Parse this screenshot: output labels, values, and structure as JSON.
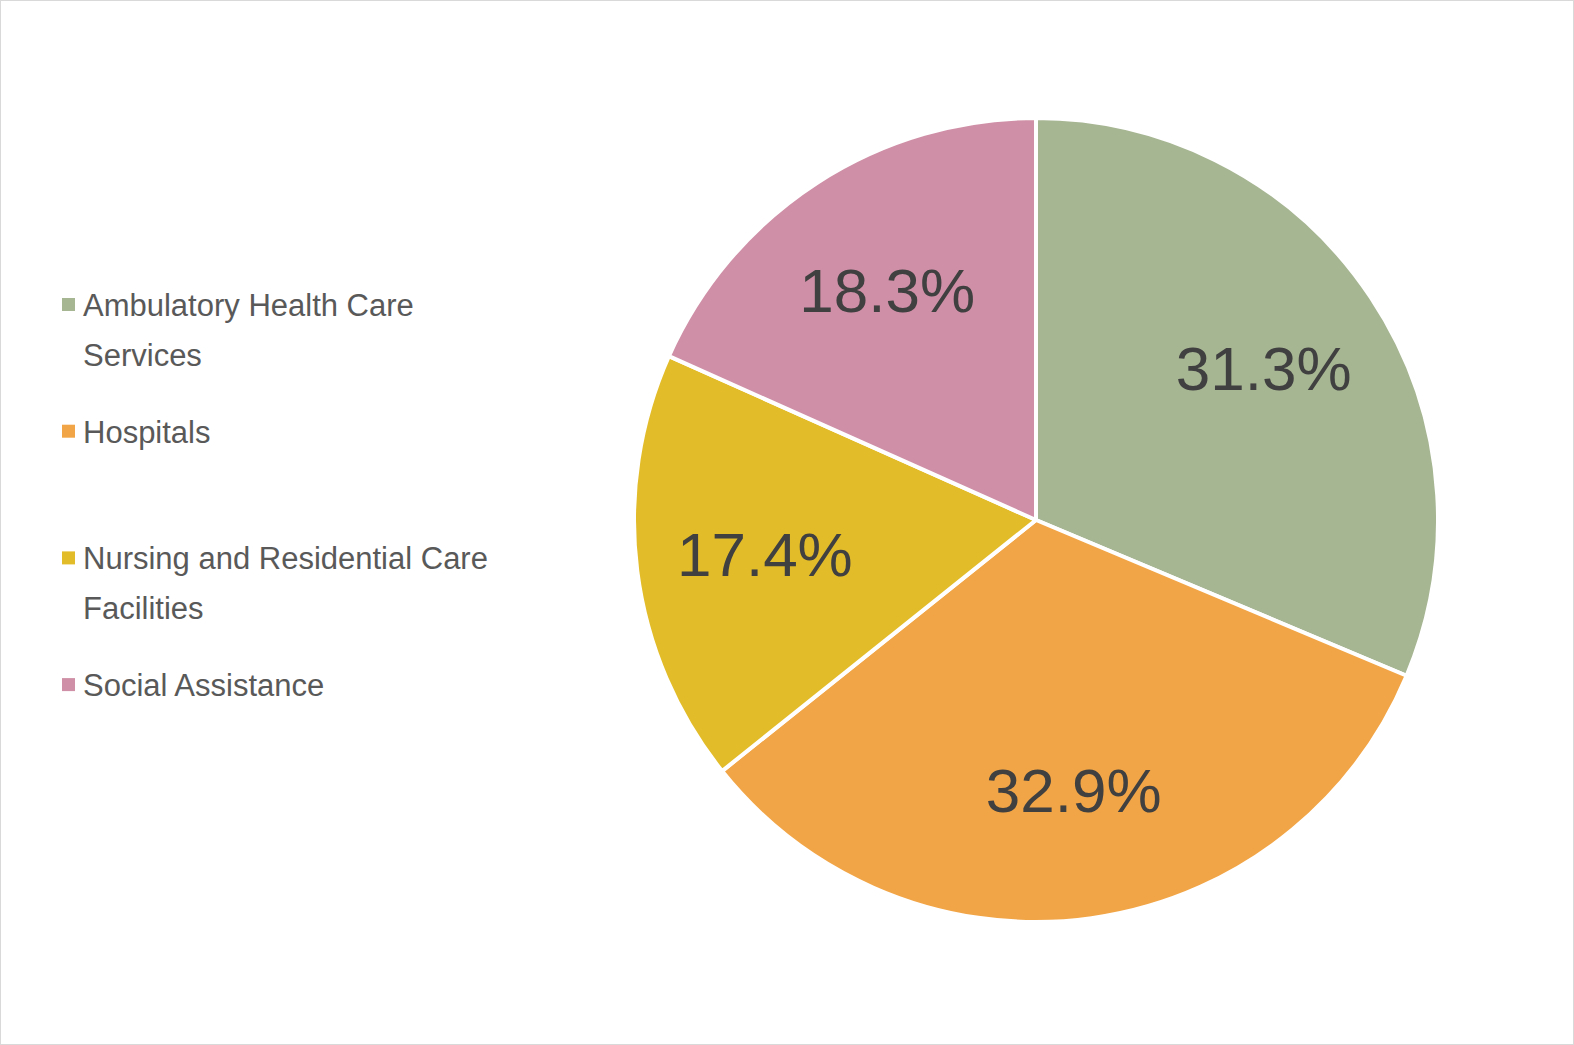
{
  "chart_data": {
    "type": "pie",
    "categories": [
      "Ambulatory Health Care Services",
      "Hospitals",
      "Nursing and Residential Care Facilities",
      "Social Assistance"
    ],
    "values": [
      31.3,
      32.9,
      17.4,
      18.3
    ],
    "value_labels": [
      "31.3%",
      "32.9%",
      "17.4%",
      "18.3%"
    ],
    "colors": [
      "#a6b592",
      "#f2a546",
      "#e3bc2a",
      "#cf8fa6"
    ],
    "data_labels": true,
    "legend": "left"
  }
}
